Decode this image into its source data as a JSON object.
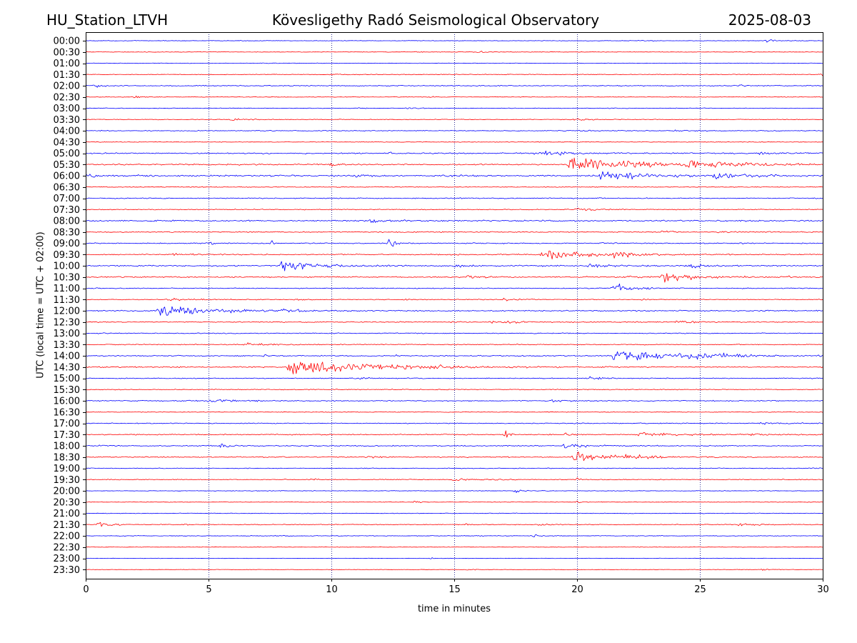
{
  "header": {
    "station": "HU_Station_LTVH",
    "title": "Kövesligethy Radó Seismological Observatory",
    "date": "2025-08-03"
  },
  "chart_data": {
    "type": "line",
    "xlabel": "time in minutes",
    "ylabel": "UTC (local time = UTC + 02:00)",
    "xlim": [
      0,
      30
    ],
    "x_ticks": [
      "0",
      "5",
      "10",
      "15",
      "20",
      "25",
      "30"
    ],
    "grid": "vertical dotted lines every 5 minutes",
    "colors": {
      "even_rows": "#0000ff",
      "odd_rows": "#ff0000",
      "grid": "#000080"
    },
    "rows": [
      {
        "label": "00:00",
        "noise": 0.25,
        "events": [
          {
            "t": 27.7,
            "amp": 1.5,
            "dur": 0.7
          },
          {
            "t": 22.5,
            "amp": 0.6,
            "dur": 0.5
          }
        ]
      },
      {
        "label": "00:30",
        "noise": 0.25,
        "events": [
          {
            "t": 13.5,
            "amp": 0.6,
            "dur": 0.6
          },
          {
            "t": 16.0,
            "amp": 0.6,
            "dur": 0.8
          }
        ]
      },
      {
        "label": "01:00",
        "noise": 0.25,
        "events": []
      },
      {
        "label": "01:30",
        "noise": 0.3,
        "events": [
          {
            "t": 29.9,
            "amp": 2.5,
            "dur": 0.3
          },
          {
            "t": 10.0,
            "amp": 0.5,
            "dur": 0.8
          }
        ]
      },
      {
        "label": "02:00",
        "noise": 0.4,
        "events": [
          {
            "t": 0.3,
            "amp": 1.8,
            "dur": 0.5
          },
          {
            "t": 26.5,
            "amp": 0.9,
            "dur": 0.8
          }
        ]
      },
      {
        "label": "02:30",
        "noise": 0.25,
        "events": [
          {
            "t": 2.0,
            "amp": 0.7,
            "dur": 0.8
          },
          {
            "t": 14.0,
            "amp": 0.5,
            "dur": 0.6
          }
        ]
      },
      {
        "label": "03:00",
        "noise": 0.3,
        "events": [
          {
            "t": 13.1,
            "amp": 1.0,
            "dur": 0.4
          },
          {
            "t": 10.8,
            "amp": 0.5,
            "dur": 0.5
          }
        ]
      },
      {
        "label": "03:30",
        "noise": 0.3,
        "events": [
          {
            "t": 5.9,
            "amp": 0.9,
            "dur": 1.0
          },
          {
            "t": 19.8,
            "amp": 1.0,
            "dur": 0.9
          }
        ]
      },
      {
        "label": "04:00",
        "noise": 0.35,
        "events": [
          {
            "t": 20.0,
            "amp": 0.6,
            "dur": 1.0
          },
          {
            "t": 24.0,
            "amp": 0.6,
            "dur": 1.0
          }
        ]
      },
      {
        "label": "04:30",
        "noise": 0.3,
        "events": []
      },
      {
        "label": "05:00",
        "noise": 0.55,
        "events": [
          {
            "t": 18.3,
            "amp": 2.5,
            "dur": 2.0
          },
          {
            "t": 27.5,
            "amp": 1.2,
            "dur": 0.8
          },
          {
            "t": 12.4,
            "amp": 1.0,
            "dur": 0.2
          }
        ]
      },
      {
        "label": "05:30",
        "noise": 0.55,
        "events": [
          {
            "t": 19.7,
            "amp": 8.5,
            "dur": 4.5
          },
          {
            "t": 24.5,
            "amp": 2.5,
            "dur": 3.0
          },
          {
            "t": 6.2,
            "amp": 1.0,
            "dur": 0.3
          },
          {
            "t": 10.0,
            "amp": 0.9,
            "dur": 1.0
          }
        ]
      },
      {
        "label": "06:00",
        "noise": 0.7,
        "events": [
          {
            "t": 21.0,
            "amp": 5.0,
            "dur": 3.0
          },
          {
            "t": 25.5,
            "amp": 3.0,
            "dur": 2.0
          },
          {
            "t": 0.2,
            "amp": 1.5,
            "dur": 0.4
          },
          {
            "t": 11.0,
            "amp": 1.2,
            "dur": 0.8
          },
          {
            "t": 7.5,
            "amp": 1.0,
            "dur": 0.4
          }
        ]
      },
      {
        "label": "06:30",
        "noise": 0.35,
        "events": []
      },
      {
        "label": "07:00",
        "noise": 0.45,
        "events": []
      },
      {
        "label": "07:30",
        "noise": 0.4,
        "events": [
          {
            "t": 20.0,
            "amp": 1.2,
            "dur": 1.3
          }
        ]
      },
      {
        "label": "08:00",
        "noise": 0.6,
        "events": [
          {
            "t": 11.6,
            "amp": 1.2,
            "dur": 1.0
          }
        ]
      },
      {
        "label": "08:30",
        "noise": 0.45,
        "events": [
          {
            "t": 23.5,
            "amp": 1.2,
            "dur": 0.6
          },
          {
            "t": 25.8,
            "amp": 1.0,
            "dur": 1.0
          }
        ]
      },
      {
        "label": "09:00",
        "noise": 0.45,
        "events": [
          {
            "t": 12.4,
            "amp": 9.0,
            "dur": 0.3
          },
          {
            "t": 7.6,
            "amp": 2.0,
            "dur": 0.3
          },
          {
            "t": 5.1,
            "amp": 1.0,
            "dur": 0.3
          },
          {
            "t": 21.0,
            "amp": 1.0,
            "dur": 0.8
          }
        ]
      },
      {
        "label": "09:30",
        "noise": 0.5,
        "events": [
          {
            "t": 18.6,
            "amp": 5.0,
            "dur": 2.5
          },
          {
            "t": 21.5,
            "amp": 2.5,
            "dur": 1.5
          },
          {
            "t": 3.5,
            "amp": 0.8,
            "dur": 1.0
          }
        ]
      },
      {
        "label": "10:00",
        "noise": 0.55,
        "events": [
          {
            "t": 8.0,
            "amp": 5.5,
            "dur": 2.0
          },
          {
            "t": 15.0,
            "amp": 1.5,
            "dur": 0.8
          },
          {
            "t": 20.5,
            "amp": 2.0,
            "dur": 1.5
          },
          {
            "t": 24.5,
            "amp": 2.0,
            "dur": 1.5
          }
        ]
      },
      {
        "label": "10:30",
        "noise": 0.55,
        "events": [
          {
            "t": 23.5,
            "amp": 5.0,
            "dur": 2.0
          },
          {
            "t": 15.5,
            "amp": 1.2,
            "dur": 1.5
          },
          {
            "t": 22.0,
            "amp": 1.2,
            "dur": 1.0
          },
          {
            "t": 28.6,
            "amp": 1.0,
            "dur": 0.4
          }
        ]
      },
      {
        "label": "11:00",
        "noise": 0.4,
        "events": [
          {
            "t": 21.5,
            "amp": 6.0,
            "dur": 0.8
          },
          {
            "t": 22.8,
            "amp": 1.0,
            "dur": 0.4
          }
        ]
      },
      {
        "label": "11:30",
        "noise": 0.35,
        "events": [
          {
            "t": 3.3,
            "amp": 1.3,
            "dur": 1.5
          },
          {
            "t": 13.0,
            "amp": 1.3,
            "dur": 0.3
          },
          {
            "t": 17.0,
            "amp": 1.0,
            "dur": 1.0
          },
          {
            "t": 22.7,
            "amp": 1.0,
            "dur": 0.3
          },
          {
            "t": 8.6,
            "amp": 0.9,
            "dur": 0.3
          }
        ]
      },
      {
        "label": "12:00",
        "noise": 0.5,
        "events": [
          {
            "t": 3.0,
            "amp": 6.0,
            "dur": 3.5
          },
          {
            "t": 8.0,
            "amp": 1.5,
            "dur": 1.5
          }
        ]
      },
      {
        "label": "12:30",
        "noise": 0.45,
        "events": [
          {
            "t": 16.5,
            "amp": 1.8,
            "dur": 1.5
          },
          {
            "t": 24.0,
            "amp": 1.8,
            "dur": 1.0
          }
        ]
      },
      {
        "label": "13:00",
        "noise": 0.4,
        "events": []
      },
      {
        "label": "13:30",
        "noise": 0.4,
        "events": [
          {
            "t": 6.5,
            "amp": 1.5,
            "dur": 1.5
          }
        ]
      },
      {
        "label": "14:00",
        "noise": 0.5,
        "events": [
          {
            "t": 21.5,
            "amp": 7.5,
            "dur": 3.0
          },
          {
            "t": 24.5,
            "amp": 3.0,
            "dur": 2.5
          },
          {
            "t": 12.6,
            "amp": 2.0,
            "dur": 0.2
          },
          {
            "t": 7.2,
            "amp": 1.2,
            "dur": 0.3
          }
        ]
      },
      {
        "label": "14:30",
        "noise": 0.5,
        "events": [
          {
            "t": 8.3,
            "amp": 8.0,
            "dur": 5.0
          },
          {
            "t": 14.0,
            "amp": 1.0,
            "dur": 1.5
          }
        ]
      },
      {
        "label": "15:00",
        "noise": 0.4,
        "events": [
          {
            "t": 20.5,
            "amp": 1.2,
            "dur": 1.0
          },
          {
            "t": 11.0,
            "amp": 1.0,
            "dur": 0.8
          }
        ]
      },
      {
        "label": "15:30",
        "noise": 0.4,
        "events": []
      },
      {
        "label": "16:00",
        "noise": 0.45,
        "events": [
          {
            "t": 5.0,
            "amp": 1.2,
            "dur": 2.0
          },
          {
            "t": 19.0,
            "amp": 1.5,
            "dur": 0.8
          }
        ]
      },
      {
        "label": "16:30",
        "noise": 0.3,
        "events": []
      },
      {
        "label": "17:00",
        "noise": 0.4,
        "events": [
          {
            "t": 27.5,
            "amp": 1.0,
            "dur": 1.5
          }
        ]
      },
      {
        "label": "17:30",
        "noise": 0.45,
        "events": [
          {
            "t": 17.1,
            "amp": 4.0,
            "dur": 0.3
          },
          {
            "t": 22.5,
            "amp": 2.0,
            "dur": 2.5
          },
          {
            "t": 19.5,
            "amp": 1.2,
            "dur": 0.6
          },
          {
            "t": 27.0,
            "amp": 1.0,
            "dur": 1.5
          }
        ]
      },
      {
        "label": "18:00",
        "noise": 0.45,
        "events": [
          {
            "t": 5.5,
            "amp": 2.5,
            "dur": 0.5
          },
          {
            "t": 19.5,
            "amp": 2.0,
            "dur": 1.5
          },
          {
            "t": 0.6,
            "amp": 1.0,
            "dur": 0.3
          }
        ]
      },
      {
        "label": "18:30",
        "noise": 0.45,
        "events": [
          {
            "t": 19.9,
            "amp": 5.0,
            "dur": 2.0
          },
          {
            "t": 22.0,
            "amp": 2.0,
            "dur": 2.0
          },
          {
            "t": 11.5,
            "amp": 0.8,
            "dur": 0.8
          }
        ]
      },
      {
        "label": "19:00",
        "noise": 0.35,
        "events": [
          {
            "t": 29.5,
            "amp": 1.0,
            "dur": 0.6
          }
        ]
      },
      {
        "label": "19:30",
        "noise": 0.35,
        "events": [
          {
            "t": 9.0,
            "amp": 1.2,
            "dur": 0.6
          },
          {
            "t": 15.0,
            "amp": 1.8,
            "dur": 1.5
          },
          {
            "t": 20.0,
            "amp": 1.0,
            "dur": 0.6
          }
        ]
      },
      {
        "label": "20:00",
        "noise": 0.25,
        "events": [
          {
            "t": 17.5,
            "amp": 1.5,
            "dur": 0.7
          }
        ]
      },
      {
        "label": "20:30",
        "noise": 0.25,
        "events": [
          {
            "t": 13.4,
            "amp": 2.0,
            "dur": 0.3
          },
          {
            "t": 20.0,
            "amp": 0.6,
            "dur": 0.6
          }
        ]
      },
      {
        "label": "21:00",
        "noise": 0.3,
        "events": []
      },
      {
        "label": "21:30",
        "noise": 0.35,
        "events": [
          {
            "t": 0.5,
            "amp": 3.0,
            "dur": 0.7
          },
          {
            "t": 18.5,
            "amp": 2.5,
            "dur": 0.6
          },
          {
            "t": 26.5,
            "amp": 1.8,
            "dur": 0.9
          },
          {
            "t": 3.8,
            "amp": 0.8,
            "dur": 0.5
          },
          {
            "t": 15.5,
            "amp": 0.8,
            "dur": 0.4
          }
        ]
      },
      {
        "label": "22:00",
        "noise": 0.3,
        "events": [
          {
            "t": 18.2,
            "amp": 1.5,
            "dur": 0.3
          },
          {
            "t": 7.8,
            "amp": 0.8,
            "dur": 0.4
          }
        ]
      },
      {
        "label": "22:30",
        "noise": 0.2,
        "events": []
      },
      {
        "label": "23:00",
        "noise": 0.2,
        "events": [
          {
            "t": 14.0,
            "amp": 0.5,
            "dur": 0.5
          }
        ]
      },
      {
        "label": "23:30",
        "noise": 0.2,
        "events": [
          {
            "t": 15.5,
            "amp": 0.8,
            "dur": 0.6
          },
          {
            "t": 27.5,
            "amp": 0.6,
            "dur": 0.5
          }
        ]
      }
    ]
  }
}
